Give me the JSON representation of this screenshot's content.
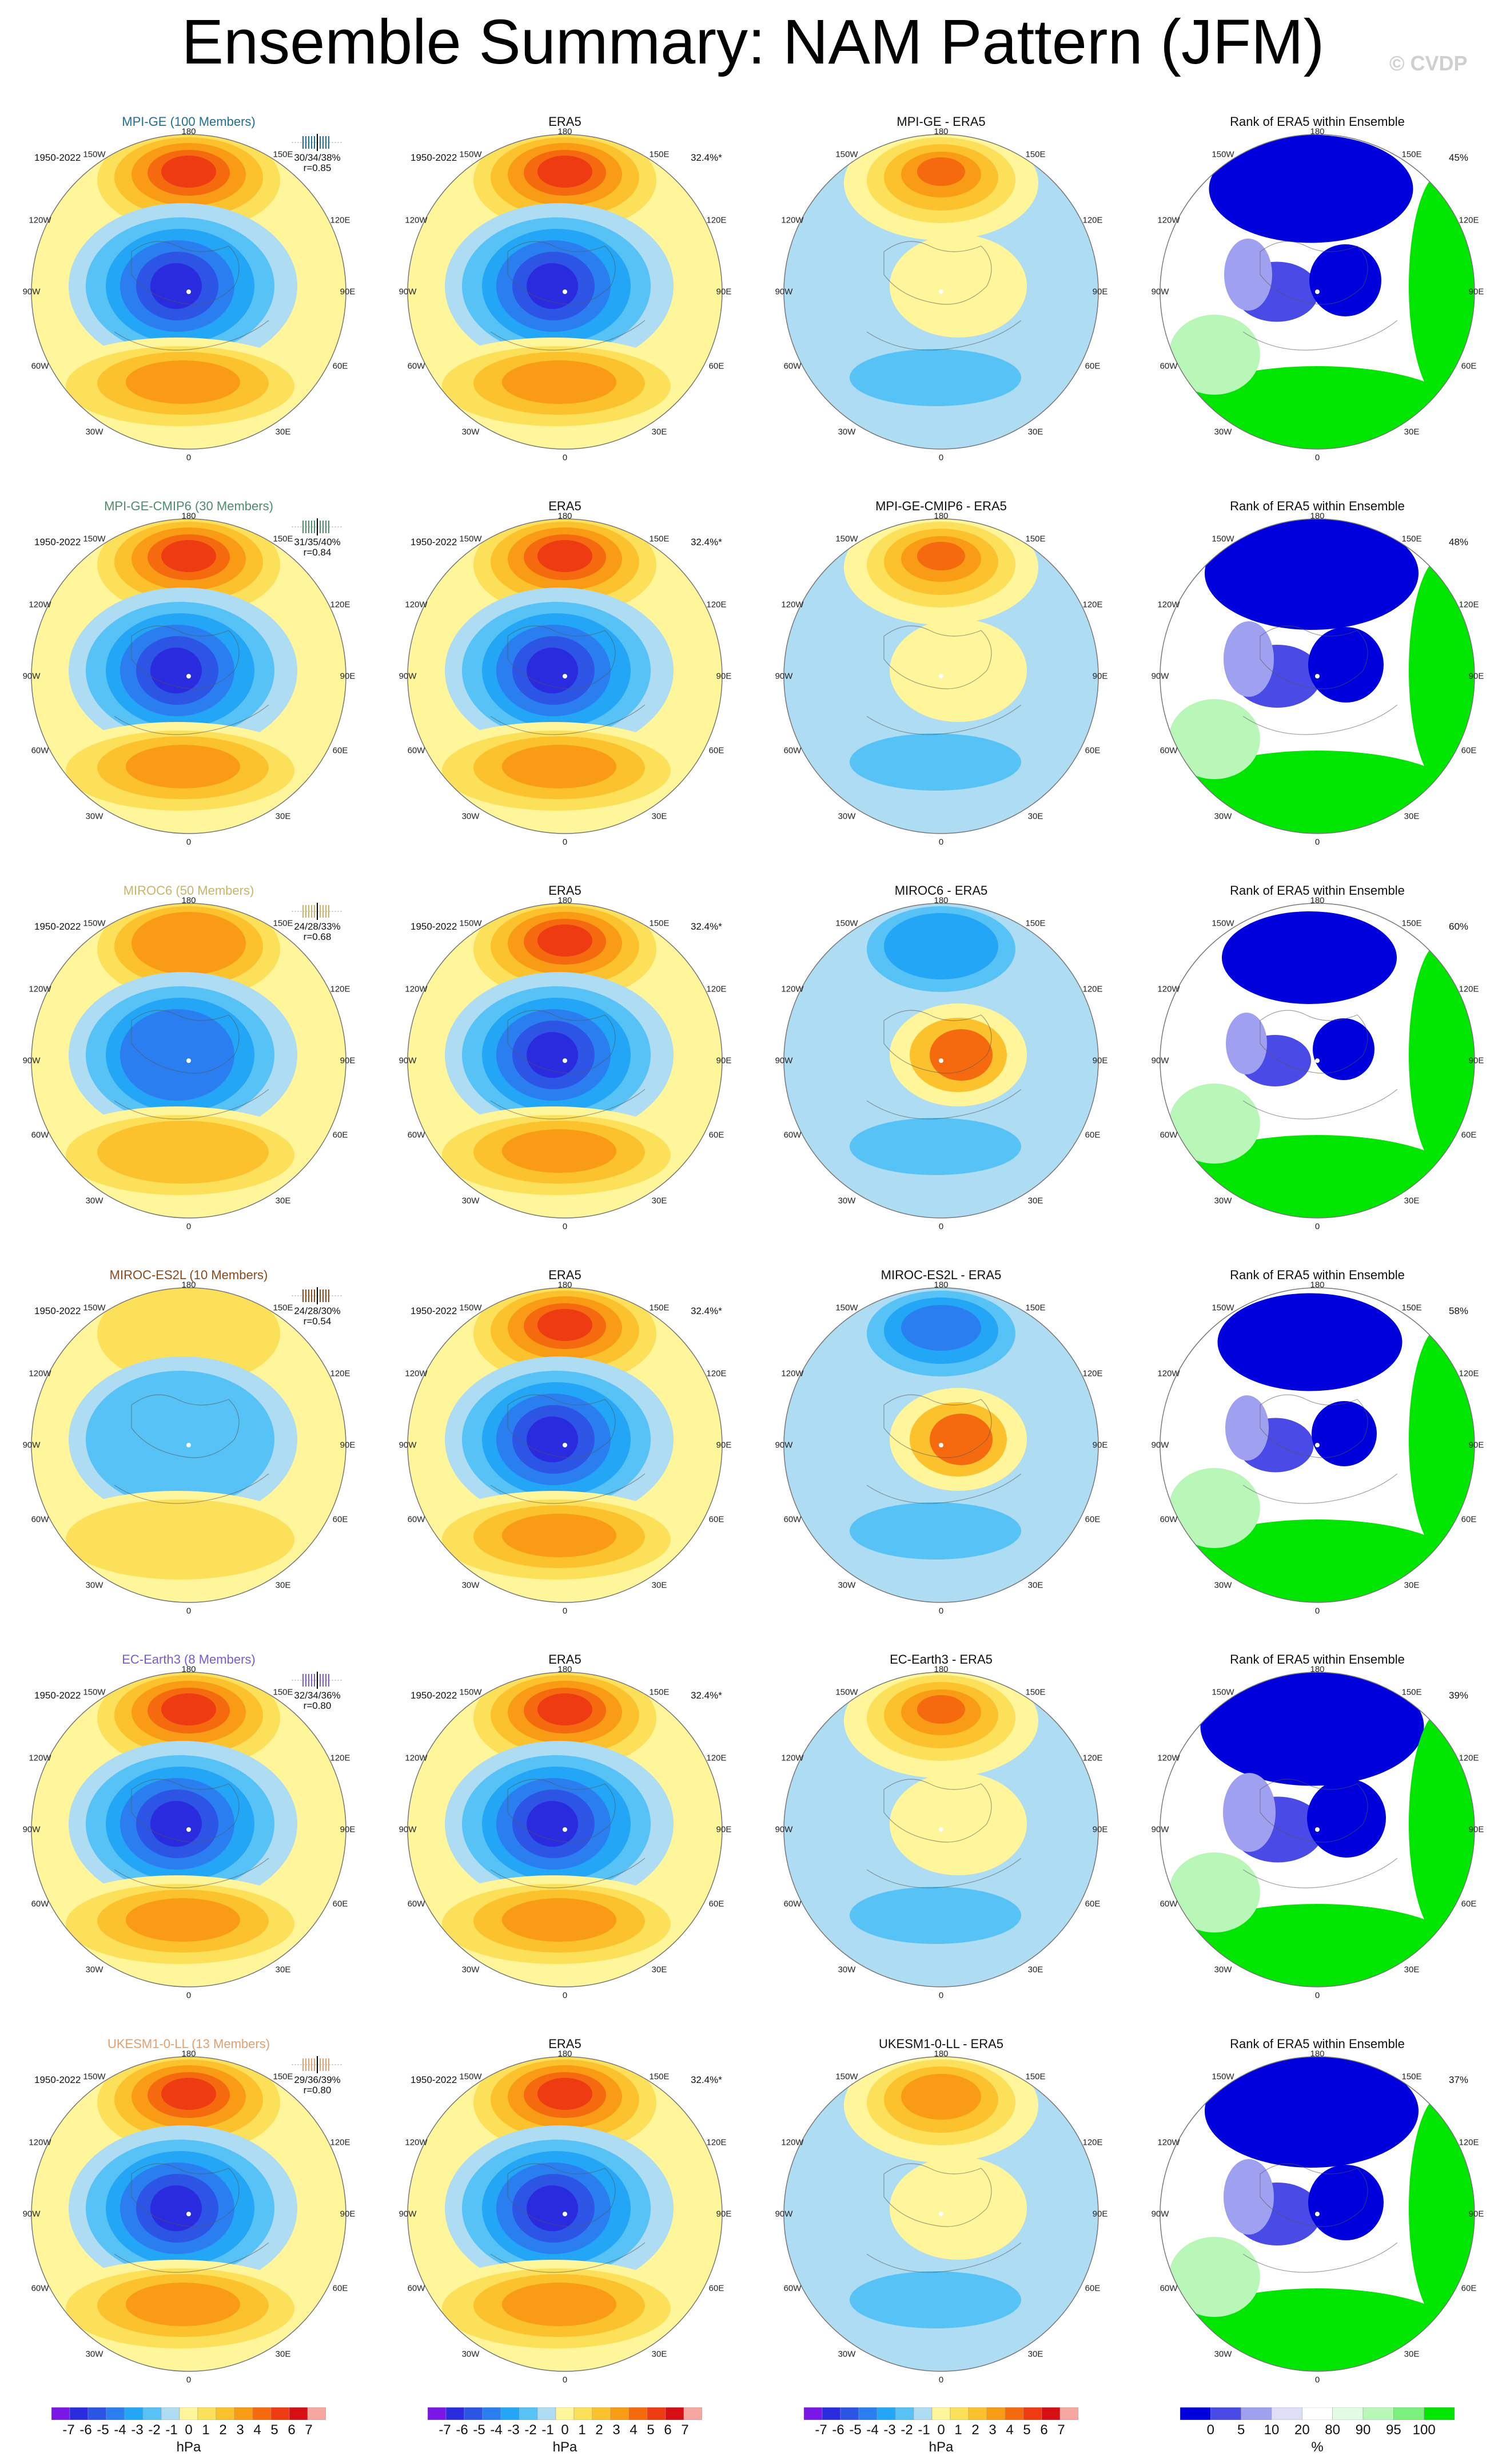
{
  "title": "Ensemble Summary: NAM Pattern (JFM)",
  "watermark": "© CVDP",
  "period": "1950-2022",
  "obs_pct": "32.4%*",
  "coords": {
    "n": "180",
    "nw": "150W",
    "ne": "150E",
    "w2": "120W",
    "e2": "120E",
    "w": "90W",
    "e": "90E",
    "sw2": "60W",
    "se2": "60E",
    "sw": "30W",
    "se": "30E",
    "s": "0"
  },
  "colors": {
    "neg": [
      "#7a16e6",
      "#2a2adf",
      "#2c55e6",
      "#2a7ef0",
      "#23a6f5",
      "#56c2f5",
      "#aedcf2"
    ],
    "pos": [
      "#fff59a",
      "#fde05a",
      "#fcc22e",
      "#f99b14",
      "#f56a0f",
      "#ee3b11",
      "#d50f14",
      "#f7a6a0"
    ],
    "rank": [
      "#0000dd",
      "#4a4ae6",
      "#a0a0f0",
      "#dedef8",
      "#ffffff",
      "#e3fbe3",
      "#b9f7b9",
      "#7cf07c",
      "#00e600"
    ]
  },
  "colorbar_hpa": {
    "ticks": [
      "-7",
      "-6",
      "-5",
      "-4",
      "-3",
      "-2",
      "-1",
      "0",
      "1",
      "2",
      "3",
      "4",
      "5",
      "6",
      "7"
    ],
    "unit": "hPa"
  },
  "colorbar_rank": {
    "ticks": [
      "0",
      "5",
      "10",
      "20",
      "80",
      "90",
      "95",
      "100"
    ],
    "unit": "%"
  },
  "rows": [
    {
      "model": "MPI-GE (100 Members)",
      "color": "#1f6f96",
      "stats": "30/34/38%",
      "r": "r=0.85",
      "diff_title": "MPI-GE - ERA5",
      "rank_title": "Rank of ERA5 within Ensemble",
      "rank_pct": "45%"
    },
    {
      "model": "MPI-GE-CMIP6 (30 Members)",
      "color": "#4e8d6a",
      "stats": "31/35/40%",
      "r": "r=0.84",
      "diff_title": "MPI-GE-CMIP6 - ERA5",
      "rank_title": "Rank of ERA5 within Ensemble",
      "rank_pct": "48%"
    },
    {
      "model": "MIROC6 (50 Members)",
      "color": "#c9b46a",
      "stats": "24/28/33%",
      "r": "r=0.68",
      "diff_title": "MIROC6 - ERA5",
      "rank_title": "Rank of ERA5 within Ensemble",
      "rank_pct": "60%"
    },
    {
      "model": "MIROC-ES2L (10 Members)",
      "color": "#8a4a1c",
      "stats": "24/28/30%",
      "r": "r=0.54",
      "diff_title": "MIROC-ES2L - ERA5",
      "rank_title": "Rank of ERA5 within Ensemble",
      "rank_pct": "58%"
    },
    {
      "model": "EC-Earth3 (8 Members)",
      "color": "#7a5bd0",
      "stats": "32/34/36%",
      "r": "r=0.80",
      "diff_title": "EC-Earth3 - ERA5",
      "rank_title": "Rank of ERA5 within Ensemble",
      "rank_pct": "39%"
    },
    {
      "model": "UKESM1-0-LL (13 Members)",
      "color": "#e0a070",
      "stats": "29/36/39%",
      "r": "r=0.80",
      "diff_title": "UKESM1-0-LL - ERA5",
      "rank_title": "Rank of ERA5 within Ensemble",
      "rank_pct": "37%"
    }
  ],
  "era5_title": "ERA5"
}
